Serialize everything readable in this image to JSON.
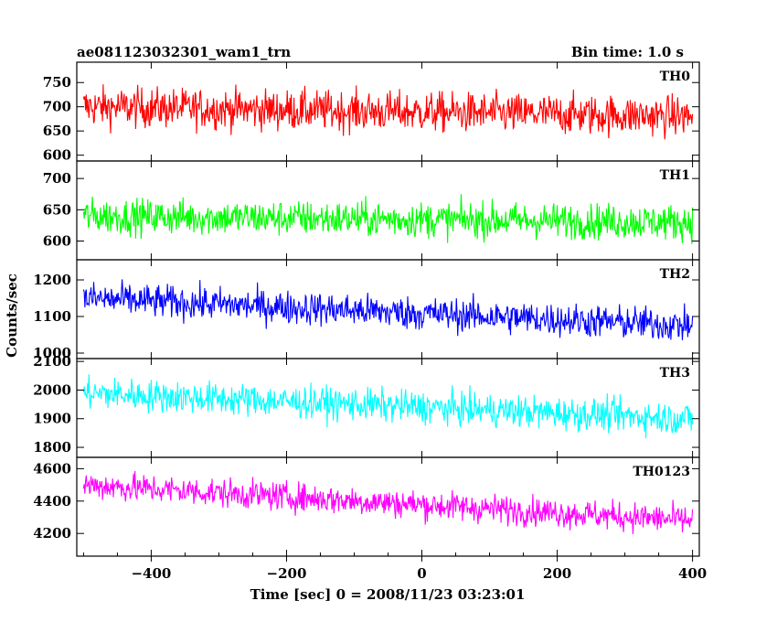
{
  "header": {
    "left_title": "ae081123032301_wam1_trn",
    "right_title": "Bin time: 1.0 s"
  },
  "chart_data": {
    "type": "line",
    "x_range": [
      -510,
      410
    ],
    "x_ticks": [
      -400,
      -200,
      0,
      200,
      400
    ],
    "x_tick_labels": [
      "−400",
      "−200",
      "0",
      "200",
      "400"
    ],
    "xlabel": "Time [sec] 0 = 2008/11/23 03:23:01",
    "ylabel": "Counts/sec",
    "grid": false,
    "panels": [
      {
        "name": "TH0",
        "color": "#ff0000",
        "ylim": [
          588,
          792
        ],
        "yticks": [
          600,
          650,
          700,
          750
        ],
        "start_level": 700,
        "end_level": 680,
        "noise": 38
      },
      {
        "name": "TH1",
        "color": "#00ff00",
        "ylim": [
          570,
          728
        ],
        "yticks": [
          600,
          650,
          700
        ],
        "start_level": 640,
        "end_level": 630,
        "noise": 26
      },
      {
        "name": "TH2",
        "color": "#0000ff",
        "ylim": [
          985,
          1255
        ],
        "yticks": [
          1000,
          1100,
          1200
        ],
        "start_level": 1150,
        "end_level": 1075,
        "noise": 42
      },
      {
        "name": "TH3",
        "color": "#00ffff",
        "ylim": [
          1765,
          2110
        ],
        "yticks": [
          1800,
          1900,
          2000,
          2100
        ],
        "start_level": 1990,
        "end_level": 1900,
        "noise": 52
      },
      {
        "name": "TH0123",
        "color": "#ff00ff",
        "ylim": [
          4060,
          4670
        ],
        "yticks": [
          4200,
          4400,
          4600
        ],
        "start_level": 4500,
        "end_level": 4280,
        "noise": 82
      }
    ],
    "series_x_range": [
      -500,
      400
    ]
  }
}
